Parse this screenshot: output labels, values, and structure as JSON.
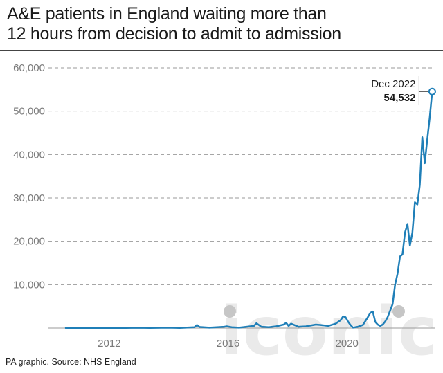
{
  "title_lines": [
    "A&E patients in England waiting more than",
    "12 hours from decision to admit to admission"
  ],
  "source": "PA graphic. Source: NHS England",
  "watermark_text": "iconic",
  "colors": {
    "line": "#1f7fb8",
    "grid": "#9a9a9a",
    "axis_text": "#7a7a7a",
    "watermark": "#d9d9d9"
  },
  "chart_data": {
    "type": "line",
    "title": "A&E patients in England waiting more than 12 hours from decision to admit to admission",
    "xlabel": "",
    "ylabel": "",
    "ylim": [
      0,
      60000
    ],
    "xlim": [
      "2010-01",
      "2023-01"
    ],
    "grid": "horizontal-dashed",
    "y_ticks": [
      {
        "value": 10000,
        "label": "10,000"
      },
      {
        "value": 20000,
        "label": "20,000"
      },
      {
        "value": 30000,
        "label": "30,000"
      },
      {
        "value": 40000,
        "label": "40,000"
      },
      {
        "value": 50000,
        "label": "50,000"
      },
      {
        "value": 60000,
        "label": "60,000"
      }
    ],
    "x_ticks": [
      {
        "value": "2012-01",
        "label": "2012"
      },
      {
        "value": "2016-01",
        "label": "2016"
      },
      {
        "value": "2020-01",
        "label": "2020"
      }
    ],
    "series": [
      {
        "points": [
          [
            "2010-08",
            10
          ],
          [
            "2011-01",
            20
          ],
          [
            "2011-06",
            15
          ],
          [
            "2012-01",
            40
          ],
          [
            "2012-06",
            20
          ],
          [
            "2013-01",
            80
          ],
          [
            "2013-06",
            30
          ],
          [
            "2014-01",
            100
          ],
          [
            "2014-06",
            50
          ],
          [
            "2014-12",
            200
          ],
          [
            "2015-01",
            700
          ],
          [
            "2015-02",
            250
          ],
          [
            "2015-06",
            100
          ],
          [
            "2015-12",
            300
          ],
          [
            "2016-01",
            400
          ],
          [
            "2016-03",
            200
          ],
          [
            "2016-06",
            100
          ],
          [
            "2016-09",
            300
          ],
          [
            "2016-12",
            500
          ],
          [
            "2017-01",
            1100
          ],
          [
            "2017-03",
            300
          ],
          [
            "2017-06",
            200
          ],
          [
            "2017-09",
            400
          ],
          [
            "2017-12",
            800
          ],
          [
            "2018-01",
            1200
          ],
          [
            "2018-02",
            500
          ],
          [
            "2018-03",
            1000
          ],
          [
            "2018-06",
            300
          ],
          [
            "2018-09",
            400
          ],
          [
            "2018-12",
            700
          ],
          [
            "2019-01",
            800
          ],
          [
            "2019-03",
            700
          ],
          [
            "2019-06",
            500
          ],
          [
            "2019-09",
            1000
          ],
          [
            "2019-11",
            1800
          ],
          [
            "2019-12",
            2700
          ],
          [
            "2020-01",
            2500
          ],
          [
            "2020-02",
            1500
          ],
          [
            "2020-03",
            700
          ],
          [
            "2020-04",
            100
          ],
          [
            "2020-06",
            300
          ],
          [
            "2020-08",
            700
          ],
          [
            "2020-10",
            2500
          ],
          [
            "2020-11",
            3500
          ],
          [
            "2020-12",
            3800
          ],
          [
            "2021-01",
            1400
          ],
          [
            "2021-02",
            800
          ],
          [
            "2021-03",
            500
          ],
          [
            "2021-04",
            800
          ],
          [
            "2021-05",
            1500
          ],
          [
            "2021-06",
            2500
          ],
          [
            "2021-07",
            4000
          ],
          [
            "2021-08",
            5500
          ],
          [
            "2021-09",
            10000
          ],
          [
            "2021-10",
            12500
          ],
          [
            "2021-11",
            16500
          ],
          [
            "2021-12",
            17000
          ],
          [
            "2022-01",
            22000
          ],
          [
            "2022-02",
            24000
          ],
          [
            "2022-03",
            19000
          ],
          [
            "2022-04",
            22000
          ],
          [
            "2022-05",
            29000
          ],
          [
            "2022-06",
            28500
          ],
          [
            "2022-07",
            33000
          ],
          [
            "2022-08",
            44000
          ],
          [
            "2022-09",
            38000
          ],
          [
            "2022-10",
            43500
          ],
          [
            "2022-11",
            48500
          ],
          [
            "2022-12",
            54532
          ]
        ]
      }
    ],
    "annotation": {
      "date": "Dec 2022",
      "value_label": "54,532",
      "x": "2022-12",
      "y": 54532
    }
  }
}
